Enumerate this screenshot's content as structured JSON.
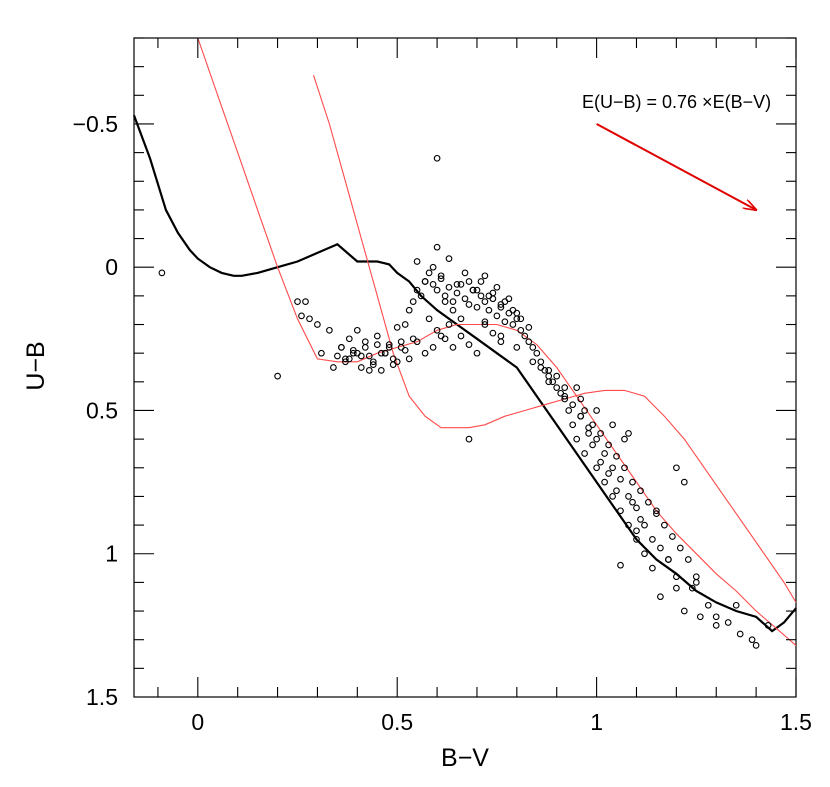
{
  "chart_data": {
    "type": "scatter",
    "title": "",
    "xlabel": "B−V",
    "ylabel": "U−B",
    "xlim": [
      -0.16,
      1.5
    ],
    "ylim": [
      1.5,
      -0.8
    ],
    "y_inverted": true,
    "x_ticks": [
      0,
      0.5,
      1,
      1.5
    ],
    "x_tick_labels": [
      "0",
      "0.5",
      "1",
      "1.5"
    ],
    "y_ticks": [
      -0.5,
      0,
      0.5,
      1,
      1.5
    ],
    "y_tick_labels": [
      "−0.5",
      "0",
      "0.5",
      "1",
      "1.5"
    ],
    "annotation": {
      "text": "E(U−B) = 0.76 ×E(B−V)",
      "arrow_from": [
        1.0,
        -0.5
      ],
      "arrow_to": [
        1.4,
        -0.2
      ],
      "arrow_color": "#e00000"
    },
    "series": [
      {
        "name": "intrinsic-main-sequence",
        "kind": "line",
        "color": "#000000",
        "x": [
          -0.16,
          -0.12,
          -0.08,
          -0.05,
          -0.02,
          0.0,
          0.03,
          0.06,
          0.09,
          0.11,
          0.15,
          0.2,
          0.25,
          0.3,
          0.35,
          0.4,
          0.45,
          0.48,
          0.5,
          0.53,
          0.56,
          0.6,
          0.65,
          0.7,
          0.75,
          0.8,
          0.85,
          0.9,
          0.95,
          1.0,
          1.05,
          1.1,
          1.15,
          1.2,
          1.25,
          1.3,
          1.35,
          1.4,
          1.44,
          1.47,
          1.5
        ],
        "y": [
          -0.53,
          -0.38,
          -0.2,
          -0.12,
          -0.06,
          -0.03,
          0.0,
          0.02,
          0.03,
          0.03,
          0.02,
          0.0,
          -0.02,
          -0.05,
          -0.08,
          -0.02,
          -0.02,
          -0.01,
          0.02,
          0.05,
          0.1,
          0.15,
          0.2,
          0.25,
          0.3,
          0.35,
          0.45,
          0.55,
          0.65,
          0.75,
          0.85,
          0.95,
          1.02,
          1.07,
          1.13,
          1.17,
          1.2,
          1.22,
          1.27,
          1.24,
          1.19
        ]
      },
      {
        "name": "reddened-sequence-1",
        "kind": "line",
        "color": "#ff4a4a",
        "x": [
          0.0,
          0.05,
          0.1,
          0.15,
          0.2,
          0.25,
          0.3,
          0.35,
          0.4,
          0.45,
          0.5,
          0.55,
          0.6,
          0.65,
          0.7,
          0.75,
          0.8,
          0.85,
          0.9,
          0.95,
          1.0,
          1.05,
          1.1,
          1.15,
          1.2,
          1.25,
          1.3,
          1.35,
          1.4,
          1.45,
          1.5
        ],
        "y": [
          -0.8,
          -0.6,
          -0.4,
          -0.2,
          0.0,
          0.18,
          0.32,
          0.33,
          0.33,
          0.3,
          0.28,
          0.26,
          0.22,
          0.2,
          0.2,
          0.2,
          0.22,
          0.27,
          0.35,
          0.45,
          0.55,
          0.65,
          0.75,
          0.85,
          0.93,
          1.0,
          1.07,
          1.13,
          1.2,
          1.26,
          1.32
        ]
      },
      {
        "name": "reddened-sequence-2",
        "kind": "line",
        "color": "#ff4a4a",
        "x": [
          0.29,
          0.33,
          0.37,
          0.41,
          0.45,
          0.49,
          0.53,
          0.57,
          0.61,
          0.65,
          0.68,
          0.72,
          0.77,
          0.82,
          0.87,
          0.92,
          0.97,
          1.02,
          1.07,
          1.12,
          1.17,
          1.22,
          1.27,
          1.32,
          1.37,
          1.42,
          1.47,
          1.5
        ],
        "y": [
          -0.67,
          -0.5,
          -0.3,
          -0.1,
          0.1,
          0.3,
          0.45,
          0.52,
          0.56,
          0.56,
          0.56,
          0.55,
          0.52,
          0.5,
          0.48,
          0.46,
          0.44,
          0.43,
          0.43,
          0.45,
          0.52,
          0.6,
          0.7,
          0.8,
          0.9,
          1.0,
          1.1,
          1.17
        ]
      },
      {
        "name": "stars",
        "kind": "scatter",
        "color": "#000000",
        "x": [
          0.6,
          0.2,
          -0.09,
          0.68,
          0.6,
          0.25,
          0.26,
          0.27,
          0.28,
          0.3,
          0.31,
          0.33,
          0.34,
          0.36,
          0.37,
          0.38,
          0.39,
          0.4,
          0.41,
          0.42,
          0.43,
          0.44,
          0.45,
          0.46,
          0.47,
          0.48,
          0.49,
          0.5,
          0.51,
          0.52,
          0.53,
          0.54,
          0.55,
          0.56,
          0.57,
          0.58,
          0.59,
          0.6,
          0.61,
          0.62,
          0.63,
          0.64,
          0.65,
          0.66,
          0.67,
          0.68,
          0.69,
          0.7,
          0.71,
          0.72,
          0.73,
          0.74,
          0.75,
          0.76,
          0.77,
          0.78,
          0.79,
          0.8,
          0.81,
          0.82,
          0.83,
          0.84,
          0.85,
          0.86,
          0.87,
          0.88,
          0.89,
          0.9,
          0.91,
          0.92,
          0.93,
          0.94,
          0.95,
          0.96,
          0.97,
          0.98,
          0.99,
          1.0,
          1.01,
          1.02,
          1.03,
          1.04,
          1.05,
          1.06,
          1.07,
          1.08,
          1.09,
          1.1,
          1.11,
          1.12,
          1.14,
          1.16,
          1.18,
          1.2,
          1.22,
          1.24,
          1.26,
          1.28,
          1.3,
          1.33,
          1.36,
          1.4,
          0.55,
          0.57,
          0.59,
          0.61,
          0.63,
          0.65,
          0.67,
          0.69,
          0.71,
          0.73,
          0.75,
          0.77,
          0.79,
          0.81,
          0.83,
          0.62,
          0.64,
          0.66,
          0.68,
          0.7,
          0.72,
          0.74,
          0.76,
          0.78,
          0.8,
          0.58,
          0.6,
          0.62,
          0.64,
          0.66,
          0.68,
          0.7,
          0.72,
          0.74,
          0.76,
          0.86,
          0.88,
          0.9,
          0.92,
          0.94,
          0.96,
          0.98,
          1.0,
          1.02,
          1.04,
          1.06,
          1.08,
          1.1,
          1.12,
          1.14,
          1.16,
          1.18,
          1.2,
          1.22,
          0.95,
          0.97,
          0.99,
          1.01,
          1.03,
          1.05,
          1.07,
          1.09,
          1.11,
          1.13,
          1.15,
          1.17,
          1.19,
          1.21,
          1.23,
          1.25,
          0.36,
          0.38,
          0.4,
          0.42,
          0.44,
          0.46,
          0.48,
          0.5,
          0.52,
          0.54,
          0.35,
          0.37,
          0.39,
          0.41,
          0.43,
          0.45,
          0.47,
          0.49,
          0.51,
          0.53,
          0.55,
          0.57,
          0.59,
          0.61,
          0.63,
          1.06,
          1.1,
          1.15,
          1.2,
          1.25,
          1.3,
          1.35,
          1.39,
          1.43,
          0.72,
          0.76,
          0.8,
          0.84,
          0.88,
          0.92,
          0.96,
          1.0,
          1.04,
          1.08
        ],
        "y": [
          -0.38,
          0.38,
          0.02,
          0.6,
          -0.07,
          0.12,
          0.17,
          0.12,
          0.18,
          0.2,
          0.3,
          0.22,
          0.35,
          0.28,
          0.32,
          0.25,
          0.3,
          0.22,
          0.35,
          0.28,
          0.31,
          0.33,
          0.24,
          0.36,
          0.3,
          0.28,
          0.32,
          0.21,
          0.26,
          0.2,
          0.15,
          0.12,
          0.08,
          0.1,
          0.05,
          0.02,
          0.06,
          0.08,
          0.03,
          0.1,
          0.07,
          0.12,
          0.09,
          0.06,
          0.11,
          0.13,
          0.08,
          0.14,
          0.1,
          0.12,
          0.15,
          0.11,
          0.17,
          0.13,
          0.19,
          0.16,
          0.2,
          0.18,
          0.22,
          0.24,
          0.26,
          0.28,
          0.3,
          0.33,
          0.36,
          0.38,
          0.4,
          0.42,
          0.44,
          0.46,
          0.5,
          0.55,
          0.6,
          0.52,
          0.65,
          0.58,
          0.62,
          0.7,
          0.68,
          0.75,
          0.72,
          0.8,
          0.78,
          0.85,
          0.6,
          0.9,
          0.82,
          0.95,
          0.88,
          1.0,
          1.05,
          1.15,
          1.02,
          1.08,
          1.2,
          1.12,
          1.22,
          1.18,
          1.25,
          1.24,
          1.28,
          1.32,
          -0.02,
          0.05,
          0.0,
          0.04,
          -0.03,
          0.06,
          0.02,
          0.08,
          0.05,
          0.1,
          0.07,
          0.12,
          0.15,
          0.18,
          0.21,
          0.12,
          0.15,
          0.18,
          0.05,
          0.08,
          0.03,
          0.09,
          0.14,
          0.11,
          0.16,
          0.18,
          0.22,
          0.25,
          0.28,
          0.24,
          0.27,
          0.3,
          0.19,
          0.23,
          0.26,
          0.35,
          0.4,
          0.38,
          0.45,
          0.48,
          0.52,
          0.56,
          0.6,
          0.65,
          0.7,
          0.74,
          0.8,
          0.84,
          0.9,
          0.95,
          0.98,
          1.02,
          0.7,
          0.75,
          0.42,
          0.5,
          0.55,
          0.58,
          0.62,
          0.66,
          0.7,
          0.75,
          0.78,
          0.82,
          0.86,
          0.9,
          0.94,
          0.98,
          1.02,
          1.1,
          0.28,
          0.32,
          0.3,
          0.26,
          0.34,
          0.3,
          0.27,
          0.33,
          0.29,
          0.25,
          0.31,
          0.33,
          0.29,
          0.31,
          0.36,
          0.27,
          0.3,
          0.34,
          0.28,
          0.32,
          0.26,
          0.3,
          0.28,
          0.24,
          0.2,
          1.04,
          0.92,
          0.85,
          1.12,
          1.08,
          1.22,
          1.18,
          1.3,
          1.25,
          0.2,
          0.24,
          0.28,
          0.33,
          0.36,
          0.42,
          0.46,
          0.5,
          0.55,
          0.58
        ]
      }
    ]
  }
}
